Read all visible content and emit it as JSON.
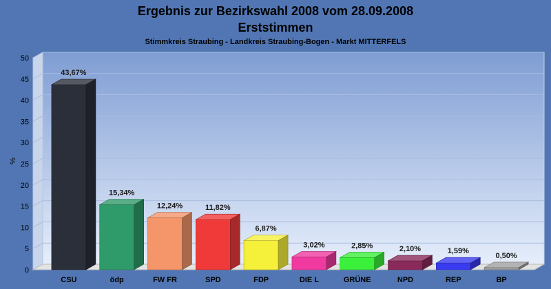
{
  "chart_data": {
    "type": "bar",
    "title": "Ergebnis zur Bezirkswahl 2008 vom 28.09.2008",
    "subtitle": "Erststimmen",
    "caption": "Stimmkreis Straubing - Landkreis Straubing-Bogen - Markt MITTERFELS",
    "ylabel": "%",
    "xlabel": "",
    "ylim": [
      0,
      50
    ],
    "yticks": [
      "0",
      "5",
      "10",
      "15",
      "20",
      "25",
      "30",
      "35",
      "40",
      "45",
      "50"
    ],
    "categories": [
      "CSU",
      "ödp",
      "FW FR",
      "SPD",
      "FDP",
      "DIE L",
      "GRÜNE",
      "NPD",
      "REP",
      "BP"
    ],
    "values": [
      43.67,
      15.34,
      12.24,
      11.82,
      6.87,
      3.02,
      2.85,
      2.1,
      1.59,
      0.5
    ],
    "value_labels": [
      "43,67%",
      "15,34%",
      "12,24%",
      "11,82%",
      "6,87%",
      "3,02%",
      "2,85%",
      "2,10%",
      "1,59%",
      "0,50%"
    ],
    "colors": [
      "#2b2f3a",
      "#2f9a6a",
      "#f5956a",
      "#f03a3a",
      "#f5f03a",
      "#f03aa0",
      "#3af03a",
      "#8a2a5a",
      "#3a3af0",
      "#a0a0a0"
    ],
    "grid": true,
    "legend": "none"
  }
}
